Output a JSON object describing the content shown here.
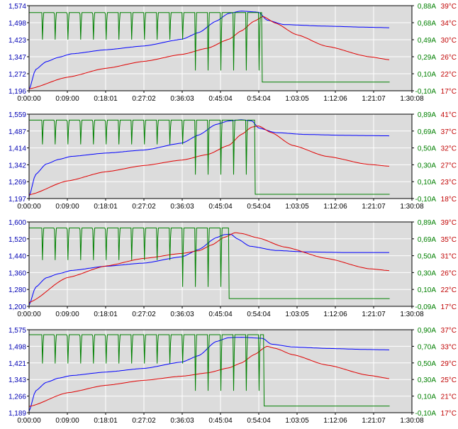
{
  "colors": {
    "voltage": "#0000ff",
    "current": "#008000",
    "temperature": "#e00000",
    "plot_background": "#dcdcdc",
    "grid": "#ffffff",
    "frame": "#000000"
  },
  "x_ticks": [
    "0:00:00",
    "0:09:00",
    "0:18:01",
    "0:27:02",
    "0:36:03",
    "0:45:04",
    "0:54:04",
    "1:03:05",
    "1:12:06",
    "1:21:07",
    "1:30:08"
  ],
  "chart_data": [
    {
      "type": "line",
      "x_unit": "h:mm:ss",
      "y_ticks": [
        "1,574",
        "1,498",
        "1,423",
        "1,347",
        "1,272",
        "1,196"
      ],
      "y2_ticks": [
        "0,88A",
        "0,68A",
        "0,49A",
        "0,29A",
        "0,10A",
        "-0,10A"
      ],
      "y3_ticks": [
        "39°C",
        "34°C",
        "30°C",
        "26°C",
        "22°C",
        "17°C"
      ],
      "ylim": [
        1.196,
        1.574
      ],
      "y2lim": [
        -0.1,
        0.88
      ],
      "y3lim": [
        17,
        39
      ],
      "series": [
        {
          "role": "voltage",
          "color": "#0000ff",
          "x": [
            0,
            1.5,
            4,
            7,
            10,
            18,
            27,
            36,
            40,
            44,
            47,
            50,
            54.1,
            56,
            60,
            70,
            80,
            85
          ],
          "y": [
            1.2,
            1.29,
            1.325,
            1.345,
            1.36,
            1.378,
            1.395,
            1.425,
            1.455,
            1.505,
            1.54,
            1.55,
            1.545,
            1.51,
            1.49,
            1.483,
            1.478,
            1.476
          ]
        },
        {
          "role": "temperature",
          "color": "#e00000",
          "x": [
            0,
            9,
            18,
            27,
            36,
            42,
            47,
            50,
            53,
            55.1,
            58,
            63,
            70,
            80,
            85
          ],
          "y": [
            17.5,
            20.5,
            22.8,
            24.6,
            26.4,
            28.0,
            30.3,
            32.5,
            35.0,
            36.2,
            34.5,
            31.5,
            28.5,
            25.8,
            25.0
          ]
        },
        {
          "role": "current",
          "color": "#008000",
          "cycle_min": 3,
          "dip_to": 0.45,
          "deep_dip_start_min": 39,
          "deep_dip_to": 0.05,
          "charge_level": 0.8,
          "cutoff_min": 54.8,
          "idle_level": 0.0,
          "end_min": 85
        }
      ]
    },
    {
      "type": "line",
      "x_unit": "h:mm:ss",
      "y_ticks": [
        "1,559",
        "1,487",
        "1,414",
        "1,342",
        "1,269",
        "1,197"
      ],
      "y2_ticks": [
        "0,89A",
        "0,69A",
        "0,50A",
        "0,30A",
        "0,10A",
        "-0,10A"
      ],
      "y3_ticks": [
        "41°C",
        "37°C",
        "32°C",
        "27°C",
        "23°C",
        "18°C"
      ],
      "ylim": [
        1.197,
        1.559
      ],
      "y2lim": [
        -0.1,
        0.89
      ],
      "y3lim": [
        18,
        41
      ],
      "series": [
        {
          "role": "voltage",
          "color": "#0000ff",
          "x": [
            0,
            1.5,
            4,
            7,
            10,
            18,
            27,
            36,
            40,
            44,
            47,
            50,
            52.5,
            54,
            58,
            65,
            75,
            85
          ],
          "y": [
            1.205,
            1.3,
            1.345,
            1.365,
            1.378,
            1.392,
            1.405,
            1.435,
            1.47,
            1.515,
            1.53,
            1.535,
            1.53,
            1.5,
            1.48,
            1.472,
            1.468,
            1.466
          ]
        },
        {
          "role": "temperature",
          "color": "#e00000",
          "x": [
            0,
            9,
            18,
            27,
            36,
            42,
            47,
            50,
            52.5,
            54,
            57,
            62,
            70,
            80,
            85
          ],
          "y": [
            19.0,
            22.8,
            25.3,
            27.0,
            28.5,
            30.0,
            32.5,
            35.5,
            37.5,
            37.8,
            36.0,
            32.5,
            29.5,
            27.3,
            26.8
          ]
        },
        {
          "role": "current",
          "color": "#008000",
          "cycle_min": 3,
          "dip_to": 0.5,
          "deep_dip_start_min": 39,
          "deep_dip_to": 0.1,
          "charge_level": 0.82,
          "cutoff_min": 53.2,
          "idle_level": -0.05,
          "end_min": 85
        }
      ]
    },
    {
      "type": "line",
      "x_unit": "h:mm:ss",
      "y_ticks": [
        "1,600",
        "1,520",
        "1,440",
        "1,360",
        "1,280",
        "1,200"
      ],
      "y2_ticks": [
        "0,89A",
        "0,69A",
        "0,50A",
        "0,30A",
        "0,10A",
        "-0,09A"
      ],
      "y3_ticks": [
        "39°C",
        "35°C",
        "31°C",
        "26°C",
        "22°C",
        "17°C"
      ],
      "ylim": [
        1.2,
        1.6
      ],
      "y2lim": [
        -0.09,
        0.89
      ],
      "y3lim": [
        17,
        39
      ],
      "series": [
        {
          "role": "voltage",
          "color": "#0000ff",
          "x": [
            0,
            1.5,
            4,
            7,
            10,
            18,
            27,
            36,
            40,
            44,
            46,
            47.5,
            49,
            52,
            58,
            65,
            75,
            85
          ],
          "y": [
            1.205,
            1.29,
            1.335,
            1.355,
            1.37,
            1.39,
            1.405,
            1.435,
            1.47,
            1.525,
            1.54,
            1.542,
            1.52,
            1.485,
            1.465,
            1.458,
            1.455,
            1.455
          ]
        },
        {
          "role": "temperature",
          "color": "#e00000",
          "x": [
            0,
            9,
            18,
            27,
            36,
            40,
            43,
            46,
            48.5,
            50,
            54,
            60,
            70,
            80,
            85
          ],
          "y": [
            18.0,
            24.5,
            27.5,
            29.5,
            30.8,
            31.5,
            33.0,
            35.0,
            36.2,
            36.0,
            34.8,
            32.5,
            29.5,
            26.8,
            26.3
          ]
        },
        {
          "role": "current",
          "color": "#008000",
          "cycle_min": 3,
          "dip_to": 0.4,
          "deep_dip_start_min": 36,
          "deep_dip_to": 0.05,
          "charge_level": 0.82,
          "cutoff_min": 47.0,
          "idle_level": 0.0,
          "end_min": 85
        }
      ]
    },
    {
      "type": "line",
      "x_unit": "h:mm:ss",
      "y_ticks": [
        "1,575",
        "1,498",
        "1,421",
        "1,343",
        "1,266",
        "1,189"
      ],
      "y2_ticks": [
        "0,90A",
        "0,70A",
        "0,50A",
        "0,30A",
        "0,10A",
        "-0,10A"
      ],
      "y3_ticks": [
        "37°C",
        "33°C",
        "29°C",
        "25°C",
        "21°C",
        "17°C"
      ],
      "ylim": [
        1.189,
        1.575
      ],
      "y2lim": [
        -0.1,
        0.9
      ],
      "y3lim": [
        17,
        37
      ],
      "series": [
        {
          "role": "voltage",
          "color": "#0000ff",
          "x": [
            0,
            1.5,
            4,
            7,
            10,
            18,
            27,
            36,
            40,
            44,
            47,
            50,
            55,
            57,
            62,
            70,
            80,
            85
          ],
          "y": [
            1.195,
            1.29,
            1.33,
            1.35,
            1.362,
            1.378,
            1.395,
            1.425,
            1.455,
            1.52,
            1.538,
            1.54,
            1.535,
            1.508,
            1.495,
            1.488,
            1.483,
            1.481
          ]
        },
        {
          "role": "temperature",
          "color": "#e00000",
          "x": [
            0,
            9,
            18,
            27,
            36,
            42,
            47,
            50,
            53,
            56,
            58,
            62,
            70,
            80,
            85
          ],
          "y": [
            18.5,
            21.8,
            23.6,
            24.8,
            25.8,
            26.6,
            27.8,
            29.0,
            31.0,
            33.0,
            32.5,
            31.0,
            28.5,
            26.0,
            25.2
          ]
        },
        {
          "role": "current",
          "color": "#008000",
          "cycle_min": 3,
          "dip_to": 0.45,
          "deep_dip_start_min": 39,
          "deep_dip_to": 0.08,
          "charge_level": 0.84,
          "cutoff_min": 55.2,
          "idle_level": -0.02,
          "end_min": 85
        }
      ]
    }
  ]
}
